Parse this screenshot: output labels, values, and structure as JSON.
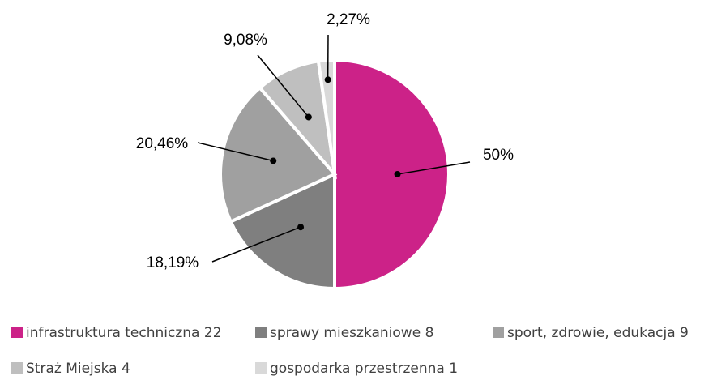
{
  "chart_data": {
    "type": "pie",
    "categories": [
      "infrastruktura techniczna 22",
      "sprawy mieszkaniowe 8",
      "sport, zdrowie, edukacja 9",
      "Straż Miejska 4",
      "gospodarka przestrzenna 1"
    ],
    "values": [
      50,
      18.19,
      20.46,
      9.08,
      2.27
    ],
    "value_labels": [
      "50%",
      "18,19%",
      "20,46%",
      "9,08%",
      "2,27%"
    ],
    "colors": [
      "#cc2288",
      "#7f7f7f",
      "#a0a0a0",
      "#bfbfbf",
      "#d9d9d9"
    ]
  }
}
